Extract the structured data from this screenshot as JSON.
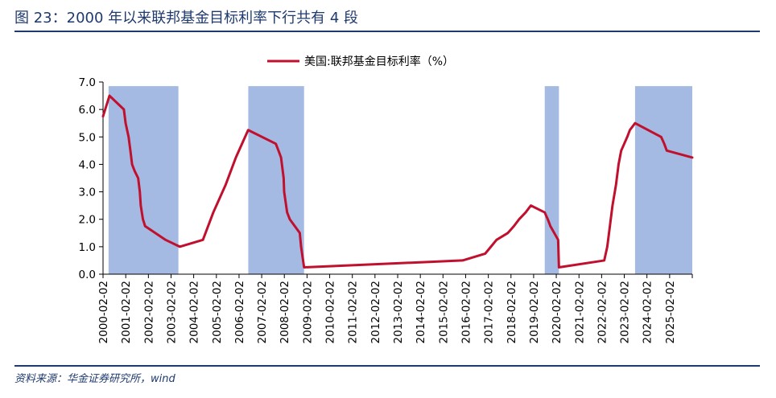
{
  "figure": {
    "title": "图 23：2000 年以来联邦基金目标利率下行共有 4 段",
    "source": "资料来源：华金证券研究所，wind"
  },
  "colors": {
    "line": "#c0102e",
    "shade": "#a4bae2",
    "brand": "#1f3a6e"
  },
  "chart_data": {
    "type": "line",
    "legend_position": "top-center",
    "y_ticks": [
      "0.0",
      "1.0",
      "2.0",
      "3.0",
      "4.0",
      "5.0",
      "6.0",
      "7.0"
    ],
    "ylim": [
      0,
      7
    ],
    "x_tick_labels": [
      "2000-02-02",
      "2001-02-02",
      "2002-02-02",
      "2003-02-02",
      "2004-02-02",
      "2005-02-02",
      "2006-02-02",
      "2007-02-02",
      "2008-02-02",
      "2009-02-02",
      "2010-02-02",
      "2011-02-02",
      "2012-02-02",
      "2013-02-02",
      "2014-02-02",
      "2015-02-02",
      "2016-02-02",
      "2017-02-02",
      "2018-02-02",
      "2019-02-02",
      "2020-02-02",
      "2021-02-02",
      "2022-02-02",
      "2023-02-02",
      "2024-02-02",
      "2025-02-02"
    ],
    "xlim": [
      "2000-02-02",
      "2026-02-02"
    ],
    "shaded_periods": [
      [
        "2000-05-01",
        "2003-06-01"
      ],
      [
        "2006-07-01",
        "2008-12-16"
      ],
      [
        "2019-07-31",
        "2020-03-16"
      ],
      [
        "2023-07-26",
        "2026-02-02"
      ]
    ],
    "shaded_top": 6.85,
    "series": [
      {
        "name": "美国:联邦基金目标利率（%）",
        "points": [
          [
            "2000-02-02",
            5.75
          ],
          [
            "2000-05-16",
            6.5
          ],
          [
            "2001-01-03",
            6.0
          ],
          [
            "2001-01-31",
            5.5
          ],
          [
            "2001-03-20",
            5.0
          ],
          [
            "2001-04-18",
            4.5
          ],
          [
            "2001-05-15",
            4.0
          ],
          [
            "2001-06-27",
            3.75
          ],
          [
            "2001-08-21",
            3.5
          ],
          [
            "2001-09-17",
            3.0
          ],
          [
            "2001-10-02",
            2.5
          ],
          [
            "2001-11-06",
            2.0
          ],
          [
            "2001-12-11",
            1.75
          ],
          [
            "2002-11-06",
            1.25
          ],
          [
            "2003-06-25",
            1.0
          ],
          [
            "2004-06-30",
            1.25
          ],
          [
            "2004-12-14",
            2.25
          ],
          [
            "2005-06-30",
            3.25
          ],
          [
            "2005-12-13",
            4.25
          ],
          [
            "2006-06-29",
            5.25
          ],
          [
            "2007-09-18",
            4.75
          ],
          [
            "2007-10-31",
            4.5
          ],
          [
            "2007-12-11",
            4.25
          ],
          [
            "2008-01-22",
            3.5
          ],
          [
            "2008-01-30",
            3.0
          ],
          [
            "2008-03-18",
            2.25
          ],
          [
            "2008-04-30",
            2.0
          ],
          [
            "2008-10-08",
            1.5
          ],
          [
            "2008-10-29",
            1.0
          ],
          [
            "2008-12-16",
            0.25
          ],
          [
            "2015-12-16",
            0.5
          ],
          [
            "2016-12-14",
            0.75
          ],
          [
            "2017-03-15",
            1.0
          ],
          [
            "2017-06-14",
            1.25
          ],
          [
            "2017-12-13",
            1.5
          ],
          [
            "2018-03-21",
            1.75
          ],
          [
            "2018-06-13",
            2.0
          ],
          [
            "2018-09-26",
            2.25
          ],
          [
            "2018-12-19",
            2.5
          ],
          [
            "2019-07-31",
            2.25
          ],
          [
            "2019-09-18",
            2.0
          ],
          [
            "2019-10-30",
            1.75
          ],
          [
            "2020-03-03",
            1.25
          ],
          [
            "2020-03-16",
            0.25
          ],
          [
            "2022-03-16",
            0.5
          ],
          [
            "2022-05-04",
            1.0
          ],
          [
            "2022-06-15",
            1.75
          ],
          [
            "2022-07-27",
            2.5
          ],
          [
            "2022-09-21",
            3.25
          ],
          [
            "2022-11-02",
            4.0
          ],
          [
            "2022-12-14",
            4.5
          ],
          [
            "2023-02-01",
            4.75
          ],
          [
            "2023-03-22",
            5.0
          ],
          [
            "2023-05-03",
            5.25
          ],
          [
            "2023-07-26",
            5.5
          ],
          [
            "2024-09-18",
            5.0
          ],
          [
            "2024-11-07",
            4.75
          ],
          [
            "2024-12-18",
            4.5
          ],
          [
            "2026-02-02",
            4.25
          ]
        ]
      }
    ]
  }
}
